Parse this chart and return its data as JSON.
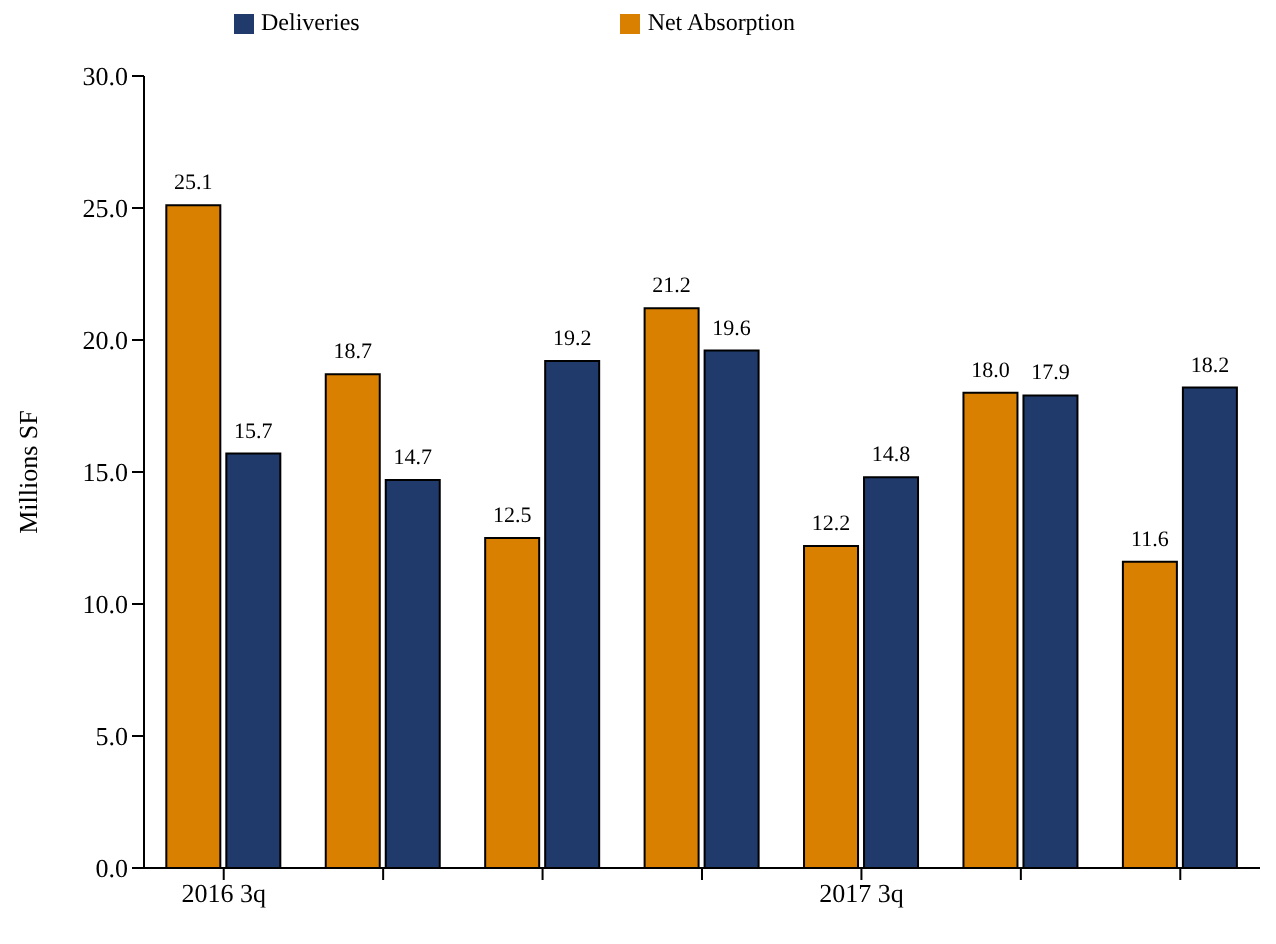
{
  "chart_data": {
    "type": "bar",
    "ylabel": "Millions SF",
    "categories": [
      "2016 3q",
      null,
      null,
      null,
      "2017 3q",
      null,
      null
    ],
    "series": [
      {
        "name": "Net Absorption",
        "color": "#d98000",
        "values": [
          25.1,
          18.7,
          12.5,
          21.2,
          12.2,
          18.0,
          11.6
        ],
        "value_labels": [
          "25.1",
          "18.7",
          "12.5",
          "21.2",
          "12.2",
          "18.0",
          "11.6"
        ]
      },
      {
        "name": "Deliveries",
        "color": "#1f3a6b",
        "values": [
          15.7,
          14.7,
          19.2,
          19.6,
          14.8,
          17.9,
          18.2
        ],
        "value_labels": [
          "15.7",
          "14.7",
          "19.2",
          "19.6",
          "14.8",
          "17.9",
          "18.2"
        ]
      }
    ],
    "ylim": [
      0,
      30
    ],
    "yticks": [
      {
        "value": 0,
        "label": "0.0"
      },
      {
        "value": 5,
        "label": "5.0"
      },
      {
        "value": 10,
        "label": "10.0"
      },
      {
        "value": 15,
        "label": "15.0"
      },
      {
        "value": 20,
        "label": "20.0"
      },
      {
        "value": 25,
        "label": "25.0"
      },
      {
        "value": 30,
        "label": "30.0"
      }
    ],
    "grid": false,
    "legend": "top"
  }
}
